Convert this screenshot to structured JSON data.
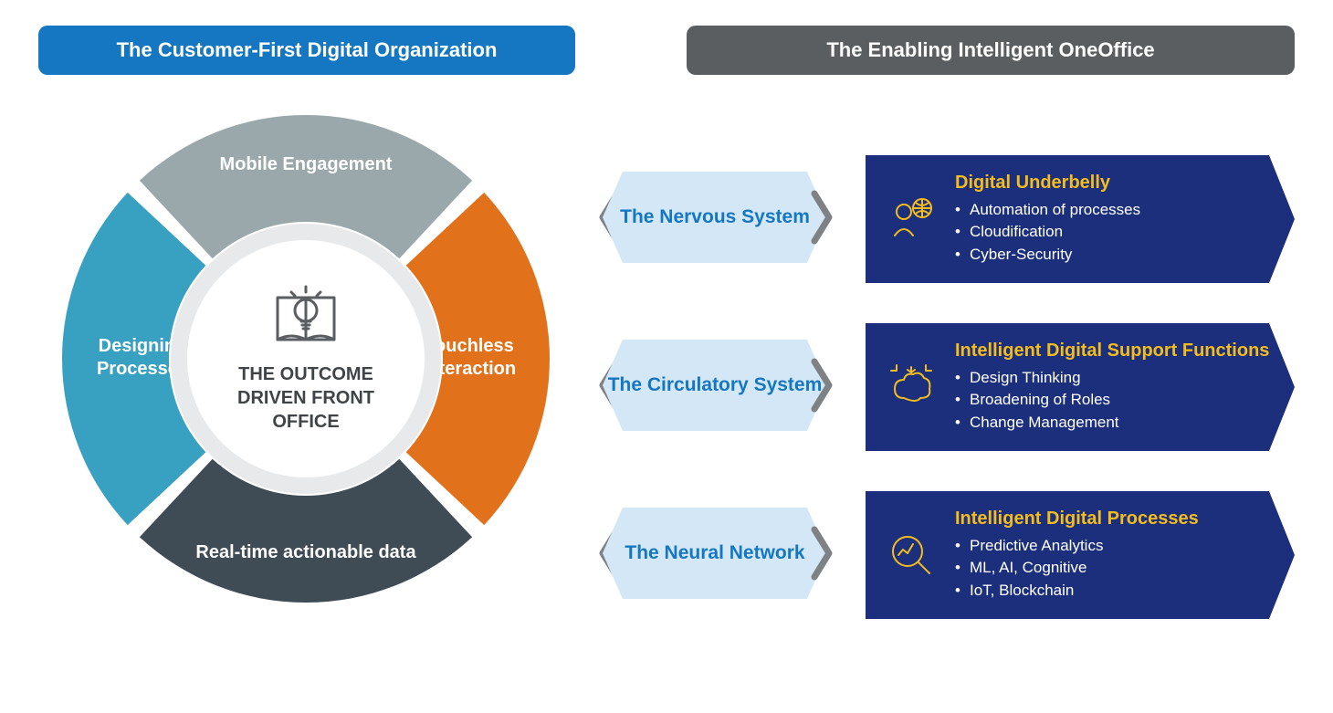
{
  "type": "infographic",
  "headers": {
    "left": {
      "label": "The Customer-First Digital Organization",
      "bg": "#1577c1",
      "fg": "#ffffff"
    },
    "right": {
      "label": "The Enabling Intelligent OneOffice",
      "bg": "#5a5e61",
      "fg": "#ffffff"
    }
  },
  "donut": {
    "center_title": "THE OUTCOME DRIVEN FRONT OFFICE",
    "outer_radius": 267,
    "inner_radius": 150,
    "gap_deg": 4,
    "center_bg": "#ffffff",
    "center_ring": "#e8e9ea",
    "center_text_color": "#404447",
    "icon_color": "#5a5e61",
    "segments": [
      {
        "label": "Mobile Engagement",
        "color": "#9aa8ab",
        "pos": "top"
      },
      {
        "label": "Touchless Interaction",
        "color": "#e1711b",
        "pos": "right"
      },
      {
        "label": "Real-time actionable data",
        "color": "#3f4b55",
        "pos": "bottom"
      },
      {
        "label": "Designing Processes",
        "color": "#38a0c0",
        "pos": "left"
      }
    ]
  },
  "systems": [
    {
      "tag": "The Nervous System",
      "tag_bg": "#d4e7f6",
      "tag_fg": "#1577c1",
      "chevron_color": "#7e8285",
      "card_bg": "#1c2f7c",
      "title_fg": "#f4bd1d",
      "body_fg": "#ffffff",
      "title": "Digital Underbelly",
      "icon": "person-globe",
      "items": [
        "Automation of processes",
        "Cloudification",
        "Cyber-Security"
      ]
    },
    {
      "tag": "The Circulatory System",
      "tag_bg": "#d4e7f6",
      "tag_fg": "#1577c1",
      "chevron_color": "#7e8285",
      "card_bg": "#1c2f7c",
      "title_fg": "#f4bd1d",
      "body_fg": "#ffffff",
      "title": "Intelligent Digital Support Functions",
      "icon": "brain-arrows",
      "items": [
        "Design Thinking",
        "Broadening of Roles",
        "Change Management"
      ]
    },
    {
      "tag": "The Neural Network",
      "tag_bg": "#d4e7f6",
      "tag_fg": "#1577c1",
      "chevron_color": "#7e8285",
      "card_bg": "#1c2f7c",
      "title_fg": "#f4bd1d",
      "body_fg": "#ffffff",
      "title": "Intelligent Digital Processes",
      "icon": "magnify-chart",
      "items": [
        "Predictive Analytics",
        "ML, AI, Cognitive",
        "IoT, Blockchain"
      ]
    }
  ]
}
